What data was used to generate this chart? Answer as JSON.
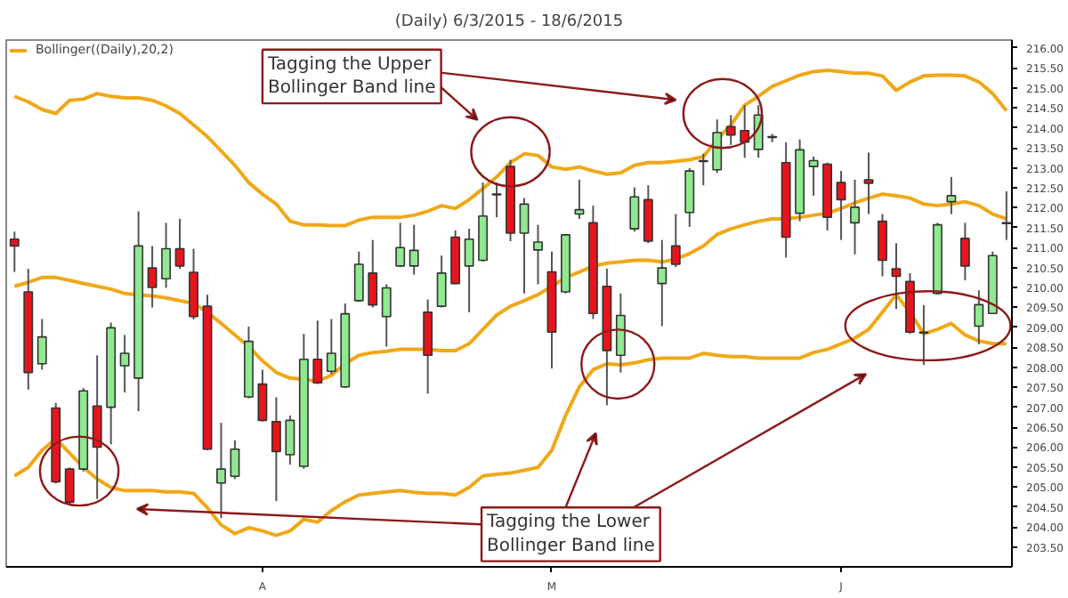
{
  "chart_data": {
    "type": "candlestick",
    "title": "(Daily) 6/3/2015 - 18/6/2015",
    "categories": [
      null,
      null,
      null,
      null,
      null,
      null,
      null,
      null,
      null,
      null,
      null,
      null,
      null,
      null,
      null,
      null,
      null,
      null,
      "A",
      null,
      null,
      null,
      null,
      null,
      null,
      null,
      null,
      null,
      null,
      null,
      null,
      null,
      null,
      null,
      null,
      null,
      null,
      null,
      null,
      "M",
      null,
      null,
      null,
      null,
      null,
      null,
      null,
      null,
      null,
      null,
      null,
      null,
      null,
      null,
      null,
      null,
      null,
      null,
      null,
      null,
      "J",
      null,
      null,
      null,
      null,
      null,
      null,
      null,
      null,
      null,
      null,
      null,
      null
    ],
    "ohlc": [
      [
        211.21,
        211.4,
        210.39,
        211.04
      ],
      [
        209.89,
        210.47,
        207.44,
        207.87
      ],
      [
        208.09,
        209.21,
        207.94,
        208.76
      ],
      [
        206.98,
        207.11,
        205.09,
        205.13
      ],
      [
        205.45,
        205.49,
        204.55,
        204.62
      ],
      [
        205.45,
        207.48,
        205.39,
        207.41
      ],
      [
        207.03,
        208.3,
        204.7,
        206.0
      ],
      [
        207.0,
        209.12,
        206.07,
        208.99
      ],
      [
        208.04,
        208.81,
        207.37,
        208.35
      ],
      [
        207.73,
        211.91,
        206.9,
        211.04
      ],
      [
        210.49,
        211.04,
        209.5,
        210.0
      ],
      [
        210.22,
        211.62,
        209.99,
        210.97
      ],
      [
        210.97,
        211.72,
        210.47,
        210.54
      ],
      [
        210.38,
        210.97,
        209.2,
        209.27
      ],
      [
        209.53,
        209.82,
        205.92,
        205.95
      ],
      [
        205.1,
        206.61,
        204.22,
        205.45
      ],
      [
        205.27,
        206.17,
        205.2,
        205.95
      ],
      [
        207.26,
        209.02,
        207.22,
        208.65
      ],
      [
        207.58,
        207.94,
        206.64,
        206.67
      ],
      [
        206.64,
        207.25,
        204.65,
        205.89
      ],
      [
        205.81,
        206.79,
        205.56,
        206.67
      ],
      [
        205.52,
        208.84,
        205.46,
        208.2
      ],
      [
        208.2,
        209.17,
        207.58,
        207.61
      ],
      [
        207.9,
        209.21,
        207.83,
        208.35
      ],
      [
        207.51,
        209.6,
        207.48,
        209.34
      ],
      [
        209.67,
        210.9,
        209.64,
        210.58
      ],
      [
        210.36,
        211.19,
        209.5,
        209.56
      ],
      [
        209.27,
        210.08,
        208.52,
        209.99
      ],
      [
        210.54,
        211.62,
        210.51,
        211.0
      ],
      [
        210.54,
        211.57,
        210.32,
        210.93
      ],
      [
        209.38,
        209.7,
        207.34,
        208.3
      ],
      [
        209.53,
        210.8,
        209.5,
        210.36
      ],
      [
        211.26,
        211.43,
        210.08,
        210.1
      ],
      [
        210.54,
        211.47,
        209.38,
        211.21
      ],
      [
        210.68,
        212.63,
        210.65,
        211.79
      ],
      [
        212.34,
        212.63,
        211.76,
        212.32
      ],
      [
        213.03,
        213.2,
        211.16,
        211.36
      ],
      [
        211.36,
        212.24,
        209.85,
        212.09
      ],
      [
        210.94,
        211.57,
        210.08,
        211.14
      ],
      [
        210.39,
        210.9,
        207.97,
        208.88
      ],
      [
        209.89,
        211.34,
        209.85,
        211.32
      ],
      [
        211.84,
        212.7,
        211.72,
        211.95
      ],
      [
        211.62,
        212.05,
        209.21,
        209.35
      ],
      [
        210.03,
        210.47,
        207.05,
        208.42
      ],
      [
        208.3,
        209.85,
        207.87,
        209.3
      ],
      [
        211.47,
        212.51,
        211.4,
        212.27
      ],
      [
        212.2,
        212.56,
        211.11,
        211.16
      ],
      [
        210.1,
        211.19,
        209.03,
        210.49
      ],
      [
        211.04,
        211.84,
        210.51,
        210.58
      ],
      [
        211.88,
        212.99,
        211.52,
        212.92
      ],
      [
        213.18,
        213.35,
        212.56,
        213.16
      ],
      [
        212.95,
        214.21,
        212.87,
        213.88
      ],
      [
        214.03,
        214.32,
        213.57,
        213.82
      ],
      [
        213.93,
        214.57,
        213.25,
        213.64
      ],
      [
        213.46,
        214.57,
        213.25,
        214.32
      ],
      [
        213.78,
        213.85,
        213.64,
        213.76
      ],
      [
        213.13,
        213.64,
        210.75,
        211.26
      ],
      [
        211.86,
        213.71,
        211.66,
        213.45
      ],
      [
        213.03,
        213.28,
        212.3,
        213.18
      ],
      [
        213.09,
        213.13,
        211.43,
        211.76
      ],
      [
        212.63,
        212.92,
        211.19,
        212.2
      ],
      [
        211.62,
        212.7,
        210.83,
        212.01
      ],
      [
        212.7,
        213.38,
        211.84,
        212.61
      ],
      [
        211.66,
        211.84,
        210.28,
        210.68
      ],
      [
        210.47,
        211.11,
        209.46,
        210.28
      ],
      [
        210.15,
        210.36,
        208.84,
        208.88
      ],
      [
        208.88,
        209.56,
        208.06,
        208.86
      ],
      [
        209.85,
        211.62,
        209.82,
        211.57
      ],
      [
        212.15,
        212.77,
        211.84,
        212.3
      ],
      [
        211.23,
        211.62,
        210.18,
        210.54
      ],
      [
        209.03,
        209.93,
        208.58,
        209.57
      ],
      [
        209.35,
        210.9,
        209.35,
        210.8
      ],
      [
        211.62,
        212.41,
        211.19,
        211.6
      ]
    ],
    "colors": [
      "#e8141c",
      "#e8141c",
      "#90e890",
      "#e8141c",
      "#e8141c",
      "#90e890",
      "#e8141c",
      "#90e890",
      "#90e890",
      "#90e890",
      "#e8141c",
      "#90e890",
      "#e8141c",
      "#e8141c",
      "#e8141c",
      "#90e890",
      "#90e890",
      "#90e890",
      "#e8141c",
      "#e8141c",
      "#90e890",
      "#90e890",
      "#e8141c",
      "#90e890",
      "#90e890",
      "#90e890",
      "#e8141c",
      "#90e890",
      "#90e890",
      "#90e890",
      "#e8141c",
      "#90e890",
      "#e8141c",
      "#90e890",
      "#90e890",
      "#000000",
      "#e8141c",
      "#90e890",
      "#90e890",
      "#e8141c",
      "#90e890",
      "#90e890",
      "#e8141c",
      "#e8141c",
      "#90e890",
      "#90e890",
      "#e8141c",
      "#90e890",
      "#e8141c",
      "#90e890",
      "#808080",
      "#90e890",
      "#e8141c",
      "#e8141c",
      "#90e890",
      "#000000",
      "#e8141c",
      "#90e890",
      "#90e890",
      "#e8141c",
      "#e8141c",
      "#90e890",
      "#e8141c",
      "#e8141c",
      "#e8141c",
      "#e8141c",
      "#808080",
      "#90e890",
      "#90e890",
      "#e8141c",
      "#90e890",
      "#90e890",
      "#000000"
    ],
    "series": [
      {
        "type": "line",
        "color": "#f0a818",
        "values": [
          214.79,
          214.65,
          214.46,
          214.36,
          214.69,
          214.72,
          214.86,
          214.79,
          214.75,
          214.75,
          214.69,
          214.55,
          214.36,
          214.07,
          213.78,
          213.42,
          213.06,
          212.63,
          212.34,
          212.09,
          211.66,
          211.57,
          211.57,
          211.55,
          211.55,
          211.69,
          211.76,
          211.76,
          211.76,
          211.81,
          211.91,
          212.05,
          211.98,
          212.2,
          212.48,
          212.77,
          213.13,
          213.35,
          213.31,
          213.02,
          212.96,
          213.02,
          212.92,
          212.84,
          212.87,
          213.06,
          213.13,
          213.13,
          213.16,
          213.2,
          213.28,
          213.71,
          214.07,
          214.57,
          214.79,
          215.04,
          215.18,
          215.32,
          215.41,
          215.44,
          215.41,
          215.37,
          215.37,
          215.3,
          214.94,
          215.15,
          215.3,
          215.32,
          215.32,
          215.3,
          215.15,
          214.86,
          214.43
        ]
      },
      {
        "type": "line",
        "name": "Bollinger((Daily),20,2)",
        "color": "#f0a818",
        "values": [
          210.03,
          210.13,
          210.25,
          210.25,
          210.18,
          210.1,
          210.03,
          209.96,
          209.85,
          209.82,
          209.79,
          209.74,
          209.67,
          209.6,
          209.38,
          209.1,
          208.81,
          208.52,
          208.16,
          207.87,
          207.73,
          207.7,
          207.65,
          207.8,
          208.09,
          208.3,
          208.37,
          208.4,
          208.45,
          208.45,
          208.45,
          208.42,
          208.42,
          208.59,
          208.95,
          209.31,
          209.53,
          209.67,
          209.82,
          210.03,
          210.25,
          210.39,
          210.54,
          210.61,
          210.64,
          210.68,
          210.68,
          210.64,
          210.71,
          210.85,
          211.04,
          211.33,
          211.47,
          211.57,
          211.66,
          211.72,
          211.72,
          211.76,
          211.81,
          211.86,
          211.98,
          212.12,
          212.24,
          212.34,
          212.3,
          212.24,
          212.09,
          212.05,
          212.09,
          212.15,
          212.05,
          211.84,
          211.72
        ]
      },
      {
        "type": "line",
        "color": "#f0a818",
        "values": [
          205.28,
          205.49,
          205.92,
          206.21,
          205.85,
          205.49,
          205.2,
          204.99,
          204.91,
          204.91,
          204.91,
          204.88,
          204.88,
          204.84,
          204.48,
          204.05,
          203.83,
          203.98,
          203.9,
          203.79,
          203.9,
          204.19,
          204.12,
          204.41,
          204.63,
          204.8,
          204.84,
          204.88,
          204.91,
          204.87,
          204.84,
          204.84,
          204.8,
          204.99,
          205.28,
          205.32,
          205.35,
          205.42,
          205.49,
          205.92,
          206.79,
          207.51,
          207.94,
          208.09,
          208.06,
          208.11,
          208.19,
          208.23,
          208.23,
          208.23,
          208.35,
          208.3,
          208.27,
          208.27,
          208.23,
          208.23,
          208.23,
          208.23,
          208.37,
          208.45,
          208.59,
          208.73,
          208.95,
          209.38,
          209.82,
          209.38,
          208.84,
          208.95,
          209.1,
          208.81,
          208.66,
          208.59,
          208.59
        ]
      }
    ],
    "ylim": [
      203.0,
      216.2
    ],
    "yticks": [
      {
        "value": 203.5,
        "label": "203.50"
      },
      {
        "value": 204,
        "label": "204.00"
      },
      {
        "value": 204.5,
        "label": "204.50"
      },
      {
        "value": 205,
        "label": "205.00"
      },
      {
        "value": 205.5,
        "label": "205.50"
      },
      {
        "value": 206,
        "label": "206.00"
      },
      {
        "value": 206.5,
        "label": "206.50"
      },
      {
        "value": 207,
        "label": "207.00"
      },
      {
        "value": 207.5,
        "label": "207.50"
      },
      {
        "value": 208,
        "label": "208.00"
      },
      {
        "value": 208.5,
        "label": "208.50"
      },
      {
        "value": 209,
        "label": "209.00"
      },
      {
        "value": 209.5,
        "label": "209.50"
      },
      {
        "value": 210,
        "label": "210.00"
      },
      {
        "value": 210.5,
        "label": "210.50"
      },
      {
        "value": 211,
        "label": "211.00"
      },
      {
        "value": 211.5,
        "label": "211.50"
      },
      {
        "value": 212,
        "label": "212.00"
      },
      {
        "value": 212.5,
        "label": "212.50"
      },
      {
        "value": 213,
        "label": "213.00"
      },
      {
        "value": 213.5,
        "label": "213.50"
      },
      {
        "value": 214,
        "label": "214.00"
      },
      {
        "value": 214.5,
        "label": "214.50"
      },
      {
        "value": 215,
        "label": "215.00"
      },
      {
        "value": 215.5,
        "label": "215.50"
      },
      {
        "value": 216,
        "label": "216.00"
      }
    ],
    "legend": "top left",
    "annotations": [
      "Tagging the Upper Bollinger Band line",
      "Tagging the Lower Bollinger Band line"
    ]
  }
}
